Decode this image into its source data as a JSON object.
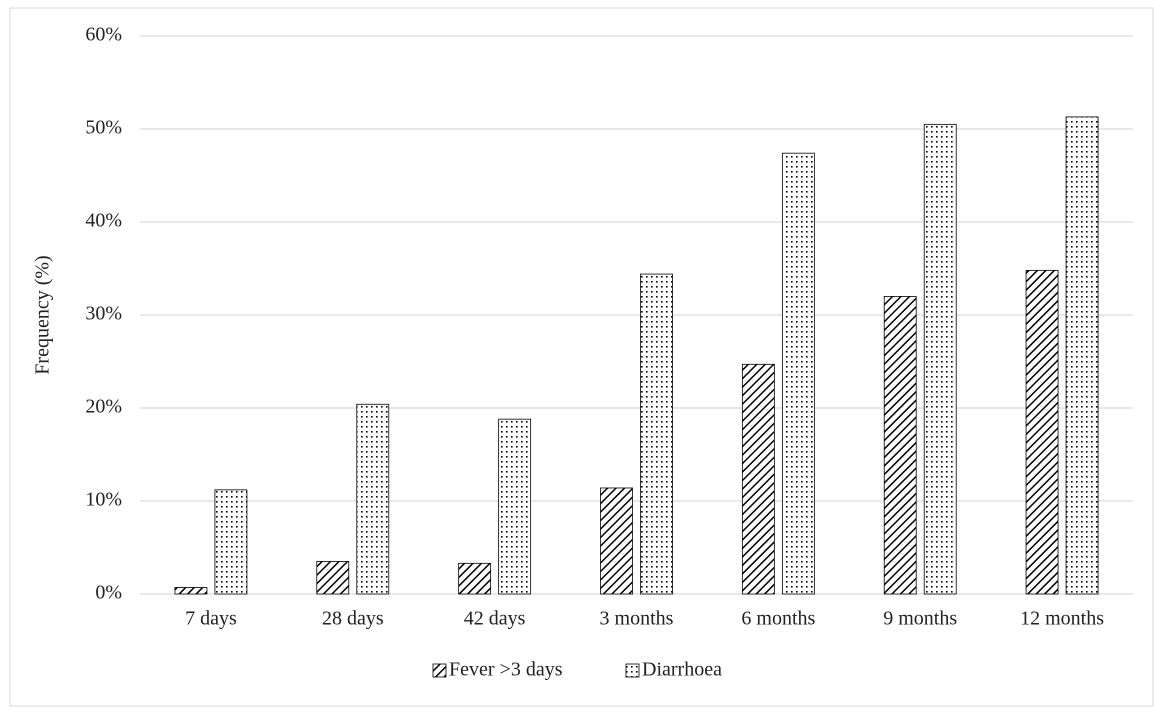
{
  "chart_data": {
    "type": "bar",
    "y_label": "Frequency (%)",
    "categories": [
      "7 days",
      "28 days",
      "42 days",
      "3 months",
      "6 months",
      "9 months",
      "12 months"
    ],
    "series": [
      {
        "name": "Fever >3 days",
        "color": "#000000",
        "pattern": "hatch",
        "values": [
          0.7,
          3.5,
          3.3,
          11.4,
          24.7,
          32.0,
          34.8
        ]
      },
      {
        "name": "Diarrhoea",
        "color": "#000000",
        "pattern": "dots",
        "values": [
          11.2,
          20.4,
          18.8,
          34.4,
          47.4,
          50.5,
          51.3
        ]
      }
    ],
    "ylim": [
      0,
      60
    ],
    "yticks": [
      {
        "value": 0,
        "label": "0%"
      },
      {
        "value": 10,
        "label": "10%"
      },
      {
        "value": 20,
        "label": "20%"
      },
      {
        "value": 30,
        "label": "30%"
      },
      {
        "value": 40,
        "label": "40%"
      },
      {
        "value": 50,
        "label": "50%"
      },
      {
        "value": 60,
        "label": "60%"
      }
    ],
    "grid": true,
    "legend": "bottom"
  }
}
